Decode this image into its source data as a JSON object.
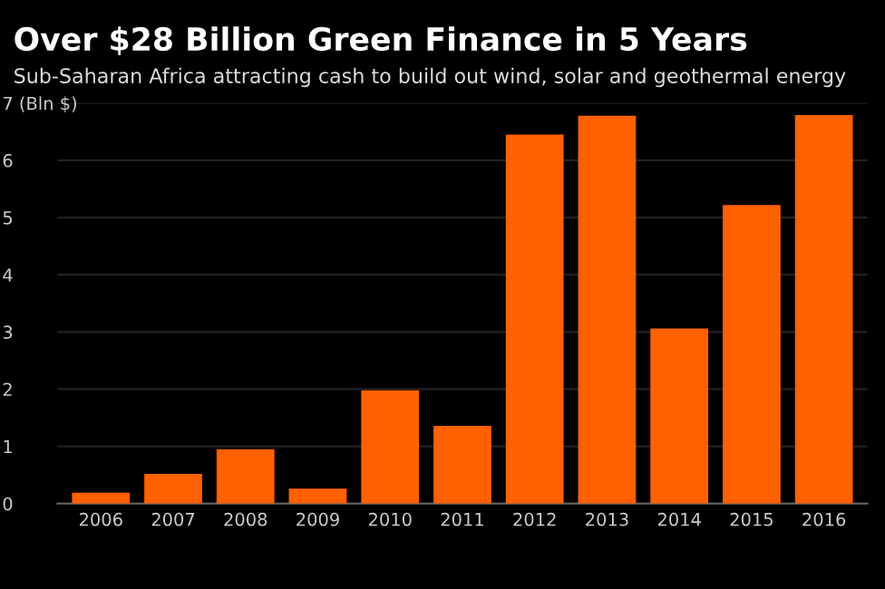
{
  "chart_data": {
    "type": "bar",
    "title": "Over $28 Billion Green Finance in 5 Years",
    "subtitle": "Sub-Saharan Africa attracting cash to build out wind, solar and geothermal energy",
    "categories": [
      "2006",
      "2007",
      "2008",
      "2009",
      "2010",
      "2011",
      "2012",
      "2013",
      "2014",
      "2015",
      "2016"
    ],
    "values": [
      0.19,
      0.52,
      0.95,
      0.26,
      1.98,
      1.36,
      6.45,
      6.78,
      3.06,
      5.22,
      6.79
    ],
    "color": "#ff6000",
    "ylim": [
      0,
      7
    ],
    "yticks": [
      0,
      1,
      2,
      3,
      4,
      5,
      6,
      {
        "value": 7,
        "label": "7 (Bln $)"
      }
    ],
    "grid": "y"
  }
}
